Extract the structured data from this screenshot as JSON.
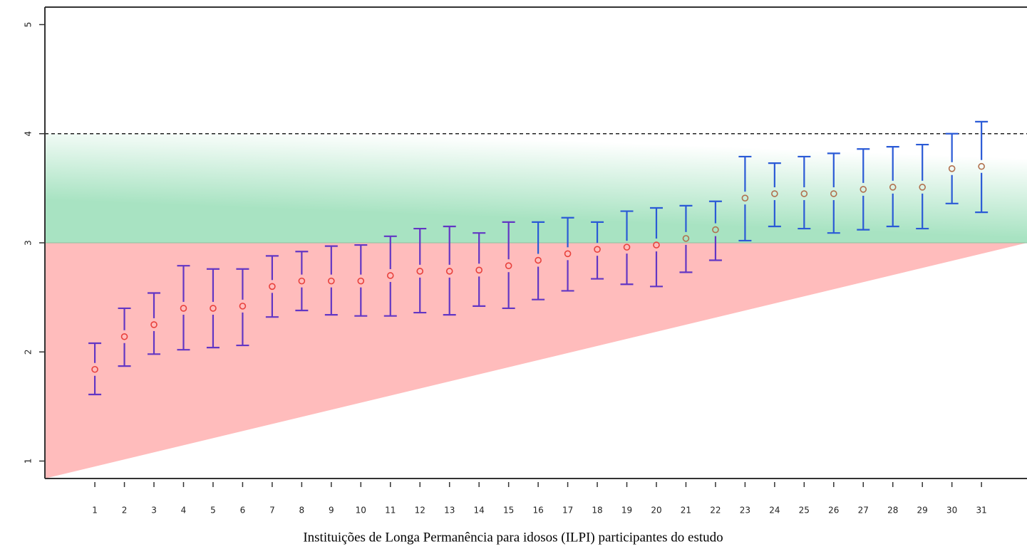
{
  "chart_data": {
    "type": "errorbar",
    "x_label": "Instituições de Longa Permanência para idosos (ILPI) participantes do estudo",
    "x": [
      1,
      2,
      3,
      4,
      5,
      6,
      7,
      8,
      9,
      10,
      11,
      12,
      13,
      14,
      15,
      16,
      17,
      18,
      19,
      20,
      21,
      22,
      23,
      24,
      25,
      26,
      27,
      28,
      29,
      30,
      31
    ],
    "values": [
      1.84,
      2.14,
      2.25,
      2.4,
      2.4,
      2.42,
      2.6,
      2.65,
      2.65,
      2.65,
      2.7,
      2.74,
      2.74,
      2.75,
      2.79,
      2.84,
      2.9,
      2.94,
      2.96,
      2.98,
      3.04,
      3.12,
      3.41,
      3.45,
      3.45,
      3.45,
      3.49,
      3.51,
      3.51,
      3.68,
      3.7
    ],
    "upper": [
      2.08,
      2.4,
      2.54,
      2.79,
      2.76,
      2.76,
      2.88,
      2.92,
      2.97,
      2.98,
      3.06,
      3.13,
      3.15,
      3.09,
      3.19,
      3.19,
      3.23,
      3.19,
      3.29,
      3.32,
      3.34,
      3.38,
      3.79,
      3.73,
      3.79,
      3.82,
      3.86,
      3.88,
      3.9,
      4.0,
      4.11
    ],
    "lower": [
      1.61,
      1.87,
      1.98,
      2.02,
      2.04,
      2.06,
      2.32,
      2.38,
      2.34,
      2.33,
      2.33,
      2.36,
      2.34,
      2.42,
      2.4,
      2.48,
      2.56,
      2.67,
      2.62,
      2.6,
      2.73,
      2.84,
      3.02,
      3.15,
      3.13,
      3.09,
      3.12,
      3.15,
      3.13,
      3.36,
      3.28
    ],
    "xlim": [
      -0.69,
      32.54
    ],
    "ylim": [
      0.84,
      5.16
    ],
    "yticks": [
      1,
      2,
      3,
      4,
      5
    ],
    "zone_boundary": 3,
    "hline": 4,
    "colors": {
      "point_below": "#e8413c",
      "point_above": "#b0704e",
      "bar_below": "#6236c4",
      "bar_above": "#2a5ad6",
      "zone_below": "#ffbcbc",
      "zone_above": "#a8e3c2"
    }
  }
}
